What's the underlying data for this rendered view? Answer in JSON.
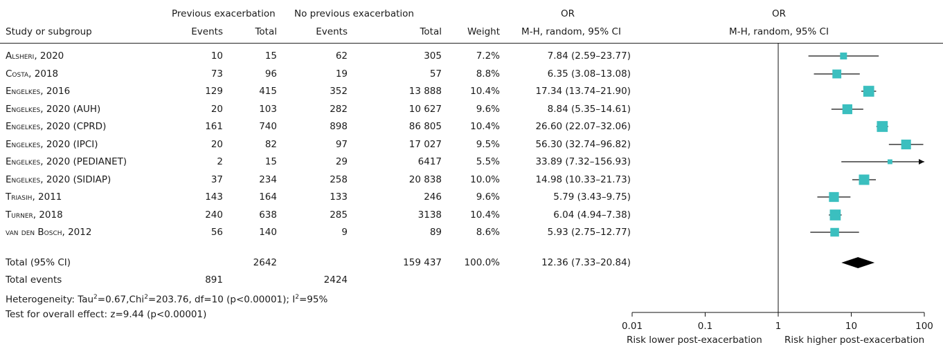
{
  "headers": {
    "prev_group": "Previous exacerbation",
    "noprev_group": "No previous exacerbation",
    "or_top": "OR",
    "or_top_plot": "OR",
    "study": "Study or subgroup",
    "events1": "Events",
    "total1": "Total",
    "events2": "Events",
    "total2": "Total",
    "weight": "Weight",
    "method": "M-H, random, 95% CI",
    "method_plot": "M-H, random, 95% CI"
  },
  "studies": [
    {
      "name": "Alsheri, 2020",
      "e1": "10",
      "t1": "15",
      "e2": "62",
      "t2": "305",
      "weight": "7.2%",
      "ci": "7.84 (2.59–23.77)"
    },
    {
      "name": "Costa, 2018",
      "e1": "73",
      "t1": "96",
      "e2": "19",
      "t2": "57",
      "weight": "8.8%",
      "ci": "6.35 (3.08–13.08)"
    },
    {
      "name": "Engelkes, 2016",
      "e1": "129",
      "t1": "415",
      "e2": "352",
      "t2": "13 888",
      "weight": "10.4%",
      "ci": "17.34 (13.74–21.90)"
    },
    {
      "name": "Engelkes, 2020 (AUH)",
      "e1": "20",
      "t1": "103",
      "e2": "282",
      "t2": "10 627",
      "weight": "9.6%",
      "ci": "8.84 (5.35–14.61)"
    },
    {
      "name": "Engelkes, 2020 (CPRD)",
      "e1": "161",
      "t1": "740",
      "e2": "898",
      "t2": "86 805",
      "weight": "10.4%",
      "ci": "26.60 (22.07–32.06)"
    },
    {
      "name": "Engelkes, 2020 (IPCI)",
      "e1": "20",
      "t1": "82",
      "e2": "97",
      "t2": "17 027",
      "weight": "9.5%",
      "ci": "56.30 (32.74–96.82)"
    },
    {
      "name": "Engelkes, 2020 (PEDIANET)",
      "e1": "2",
      "t1": "15",
      "e2": "29",
      "t2": "6417",
      "weight": "5.5%",
      "ci": "33.89 (7.32–156.93)"
    },
    {
      "name": "Engelkes, 2020 (SIDIAP)",
      "e1": "37",
      "t1": "234",
      "e2": "258",
      "t2": "20 838",
      "weight": "10.0%",
      "ci": "14.98 (10.33–21.73)"
    },
    {
      "name": "Triasih, 2011",
      "e1": "143",
      "t1": "164",
      "e2": "133",
      "t2": "246",
      "weight": "9.6%",
      "ci": "5.79 (3.43–9.75)"
    },
    {
      "name": "Turner, 2018",
      "e1": "240",
      "t1": "638",
      "e2": "285",
      "t2": "3138",
      "weight": "10.4%",
      "ci": "6.04 (4.94–7.38)"
    },
    {
      "name": "van den Bosch, 2012",
      "e1": "56",
      "t1": "140",
      "e2": "9",
      "t2": "89",
      "weight": "8.6%",
      "ci": "5.93 (2.75–12.77)"
    }
  ],
  "total": {
    "label": "Total (95% CI)",
    "t1": "2642",
    "t2": "159 437",
    "weight": "100.0%",
    "ci": "12.36 (7.33–20.84)"
  },
  "total_events": {
    "label": "Total events",
    "e1": "891",
    "e2": "2424"
  },
  "heterogeneity": {
    "prefix": "Heterogeneity: Tau",
    "tau_exp": "2",
    "chi_part": "=0.67,Chi",
    "chi_exp": "2",
    "rest": "=203.76, df=10 (p<0.00001); I",
    "i_exp": "2",
    "end": "=95%"
  },
  "overall_effect": "Test for overall effect: z=9.44 (p<0.00001)",
  "axis": {
    "ticks": [
      "0.01",
      "0.1",
      "1",
      "10",
      "100"
    ],
    "label_left": "Risk lower post-exacerbation",
    "label_right": "Risk higher post-exacerbation"
  },
  "chart_data": {
    "type": "scatter",
    "title": "",
    "xlabel": "",
    "x_scale": "log",
    "xlim": [
      0.01,
      100
    ],
    "reference_line": 1,
    "series": [
      {
        "points": [
          {
            "study": "Alsheri, 2020",
            "or": 7.84,
            "low": 2.59,
            "high": 23.77,
            "weight": 7.2
          },
          {
            "study": "Costa, 2018",
            "or": 6.35,
            "low": 3.08,
            "high": 13.08,
            "weight": 8.8
          },
          {
            "study": "Engelkes, 2016",
            "or": 17.34,
            "low": 13.74,
            "high": 21.9,
            "weight": 10.4
          },
          {
            "study": "Engelkes, 2020 (AUH)",
            "or": 8.84,
            "low": 5.35,
            "high": 14.61,
            "weight": 9.6
          },
          {
            "study": "Engelkes, 2020 (CPRD)",
            "or": 26.6,
            "low": 22.07,
            "high": 32.06,
            "weight": 10.4
          },
          {
            "study": "Engelkes, 2020 (IPCI)",
            "or": 56.3,
            "low": 32.74,
            "high": 96.82,
            "weight": 9.5
          },
          {
            "study": "Engelkes, 2020 (PEDIANET)",
            "or": 33.89,
            "low": 7.32,
            "high": 156.93,
            "weight": 5.5
          },
          {
            "study": "Engelkes, 2020 (SIDIAP)",
            "or": 14.98,
            "low": 10.33,
            "high": 21.73,
            "weight": 10.0
          },
          {
            "study": "Triasih, 2011",
            "or": 5.79,
            "low": 3.43,
            "high": 9.75,
            "weight": 9.6
          },
          {
            "study": "Turner, 2018",
            "or": 6.04,
            "low": 4.94,
            "high": 7.38,
            "weight": 10.4
          },
          {
            "study": "van den Bosch, 2012",
            "or": 5.93,
            "low": 2.75,
            "high": 12.77,
            "weight": 8.6
          }
        ]
      }
    ],
    "pooled": {
      "or": 12.36,
      "low": 7.33,
      "high": 20.84
    },
    "marker_color": "#3bbfbf",
    "diamond_color": "#000000"
  }
}
